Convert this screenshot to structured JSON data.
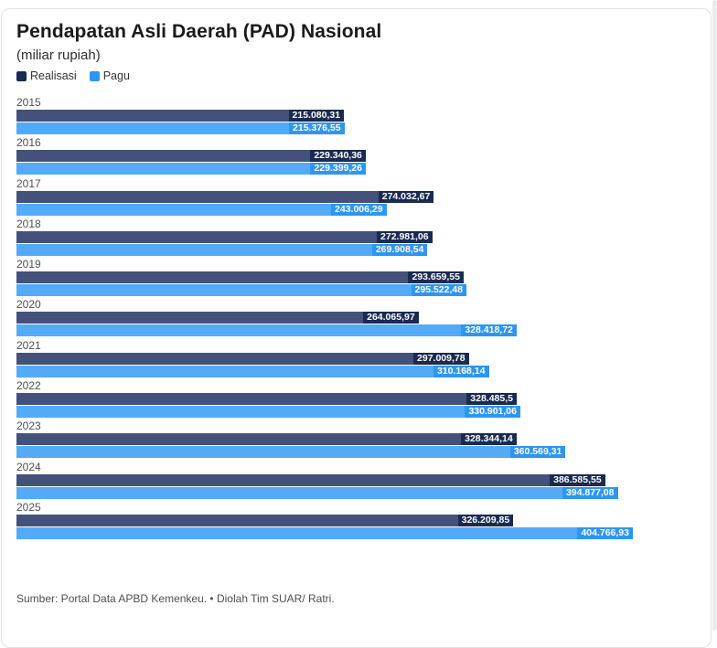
{
  "header": {
    "title": "Pendapatan Asli Daerah (PAD) Nasional",
    "subtitle": "(miliar rupiah)"
  },
  "legend": {
    "items": [
      {
        "label": "Realisasi",
        "color": "#1a2a52"
      },
      {
        "label": "Pagu",
        "color": "#2e95f3"
      }
    ]
  },
  "colors": {
    "realisasi_bar": "#44517a",
    "realisasi_label_bg": "#1a2a52",
    "pagu_bar": "#54aaf7",
    "pagu_label_bg": "#2e95f3"
  },
  "chart_data": {
    "type": "bar",
    "orientation": "horizontal",
    "title": "Pendapatan Asli Daerah (PAD) Nasional",
    "subtitle": "(miliar rupiah)",
    "unit": "miliar rupiah",
    "xlim": [
      0,
      404766.93
    ],
    "grid": false,
    "legend_position": "top-left",
    "categories": [
      "2015",
      "2016",
      "2017",
      "2018",
      "2019",
      "2020",
      "2021",
      "2022",
      "2023",
      "2024",
      "2025"
    ],
    "series": [
      {
        "name": "Realisasi",
        "values": [
          215080.31,
          229340.36,
          274032.67,
          272981.06,
          293659.55,
          264065.97,
          297009.78,
          328485.5,
          328344.14,
          386585.55,
          326209.85
        ],
        "labels": [
          "215.080,31",
          "229.340,36",
          "274.032,67",
          "272.981,06",
          "293.659,55",
          "264.065,97",
          "297.009,78",
          "328.485,5",
          "328.344,14",
          "386.585,55",
          "326.209,85"
        ]
      },
      {
        "name": "Pagu",
        "values": [
          215376.55,
          229399.26,
          243006.29,
          269908.54,
          295522.48,
          328418.72,
          310168.14,
          330901.06,
          360569.31,
          394877.08,
          404766.93
        ],
        "labels": [
          "215.376,55",
          "229.399,26",
          "243.006,29",
          "269.908,54",
          "295.522,48",
          "328.418,72",
          "310.168,14",
          "330.901,06",
          "360.569,31",
          "394.877,08",
          "404.766,93"
        ]
      }
    ]
  },
  "footer": {
    "source": "Sumber: Portal Data APBD Kemenkeu. • Diolah Tim SUAR/ Ratri."
  }
}
